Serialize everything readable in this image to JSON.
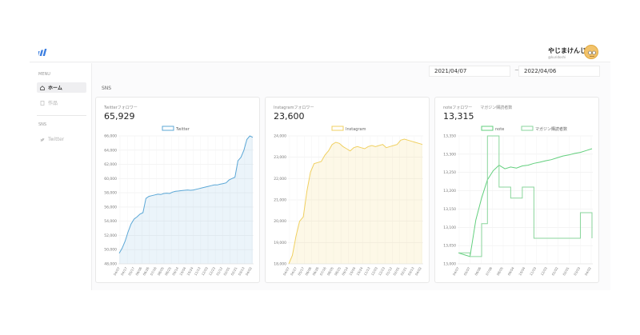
{
  "header": {
    "user_name": "やじまけんじ",
    "user_handle": "@kuridoshi",
    "logo_icon": "bars-logo-icon"
  },
  "sidebar": {
    "menu_label": "MENU",
    "items": [
      {
        "label": "ホーム",
        "icon": "home-icon",
        "active": true
      },
      {
        "label": "作品",
        "icon": "doc-icon",
        "active": false
      }
    ],
    "sns_label": "SNS",
    "sns_items": [
      {
        "label": "Twitter",
        "icon": "twitter-icon"
      }
    ]
  },
  "date_range": {
    "start": "2021/04/07",
    "separator": "~",
    "end": "2022/04/06"
  },
  "section_label": "SNS",
  "colors": {
    "twitter": "#5ba7d6",
    "instagram": "#f0d060",
    "note": "#62cf7d",
    "magazine": "#8ad69c"
  },
  "cards": [
    {
      "title": "Twitterフォロワー",
      "value": "65,929",
      "chart_data": {
        "type": "area",
        "legend": [
          "Twitter"
        ],
        "y_ticks": [
          "66,000",
          "64,000",
          "62,000",
          "60,000",
          "58,000",
          "56,000",
          "54,000",
          "52,000",
          "50,000",
          "48,000"
        ],
        "ylim": [
          48000,
          66000
        ],
        "x_ticks": [
          "04/07",
          "04/17",
          "05/17",
          "06/06",
          "06/26",
          "07/16",
          "08/05",
          "08/25",
          "09/14",
          "10/04",
          "10/24",
          "11/13",
          "12/03",
          "12/23",
          "01/12",
          "02/01",
          "02/21",
          "03/13",
          "04/02"
        ],
        "series": [
          {
            "name": "Twitter",
            "values": [
              49500,
              50200,
              51200,
              52500,
              53600,
              54300,
              54600,
              55000,
              55200,
              57200,
              57500,
              57600,
              57700,
              57800,
              57750,
              57900,
              57950,
              57900,
              58100,
              58200,
              58250,
              58300,
              58350,
              58400,
              58350,
              58400,
              58500,
              58600,
              58700,
              58800,
              58900,
              59000,
              59100,
              59100,
              59200,
              59300,
              59400,
              59800,
              60000,
              60200,
              62500,
              63000,
              64000,
              65500,
              66000,
              65800
            ]
          }
        ]
      }
    },
    {
      "title": "Instagramフォロワー",
      "value": "23,600",
      "chart_data": {
        "type": "area",
        "legend": [
          "Instagram"
        ],
        "y_ticks": [
          "24,000",
          "23,000",
          "22,000",
          "21,000",
          "20,000",
          "19,000",
          "18,000"
        ],
        "ylim": [
          18000,
          24000
        ],
        "x_ticks": [
          "04/07",
          "04/27",
          "05/17",
          "06/06",
          "06/26",
          "07/16",
          "08/05",
          "08/25",
          "09/14",
          "10/04",
          "10/24",
          "11/13",
          "12/03",
          "12/23",
          "01/12",
          "02/01",
          "02/21",
          "03/13",
          "04/02"
        ],
        "series": [
          {
            "name": "Instagram",
            "values": [
              18000,
              18400,
              19300,
              20000,
              20200,
              21400,
              22300,
              22700,
              22750,
              22800,
              23100,
              23300,
              23600,
              23700,
              23650,
              23500,
              23400,
              23300,
              23450,
              23500,
              23450,
              23400,
              23500,
              23550,
              23500,
              23550,
              23600,
              23450,
              23500,
              23550,
              23600,
              23800,
              23850,
              23800,
              23750,
              23700,
              23650,
              23600
            ]
          }
        ]
      }
    },
    {
      "title": "noteフォロワー　　マガジン購読者数",
      "value": "13,315",
      "chart_data": {
        "type": "line",
        "legend": [
          "note",
          "マガジン購読者数"
        ],
        "y_ticks": [
          "13,350",
          "13,300",
          "13,250",
          "13,200",
          "13,150",
          "13,100",
          "13,050",
          "13,000"
        ],
        "ylim": [
          13000,
          13350
        ],
        "x_ticks": [
          "04/07",
          "05/07",
          "06/06",
          "07/06",
          "08/05",
          "09/04",
          "10/04",
          "11/03",
          "12/03",
          "01/02",
          "02/01",
          "03/03",
          "04/02"
        ],
        "series": [
          {
            "name": "note",
            "values": [
              13030,
              13025,
              13020,
              13120,
              13180,
              13230,
              13255,
              13270,
              13260,
              13265,
              13262,
              13268,
              13270,
              13275,
              13278,
              13282,
              13285,
              13290,
              13295,
              13298,
              13302,
              13305,
              13310,
              13315
            ]
          },
          {
            "name": "マガジン購読者数",
            "values": [
              13030,
              13030,
              13020,
              13020,
              13110,
              13350,
              13350,
              13210,
              13210,
              13180,
              13180,
              13210,
              13210,
              13070,
              13070,
              13070,
              13070,
              13070,
              13070,
              13070,
              13070,
              13140,
              13140,
              13070
            ]
          }
        ]
      }
    }
  ]
}
